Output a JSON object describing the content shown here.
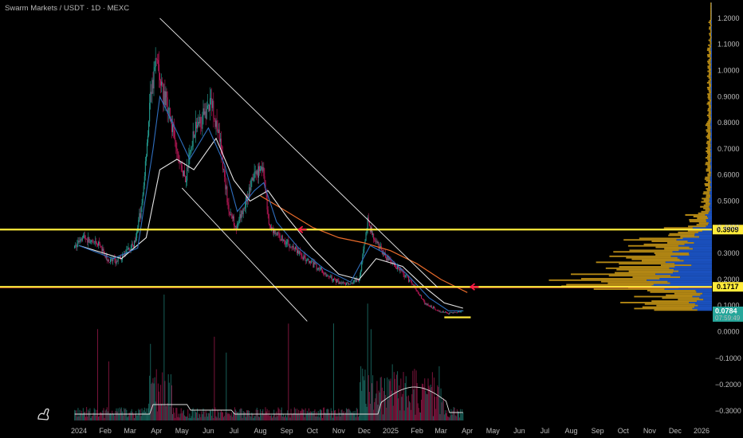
{
  "header": {
    "title": "Swarm Markets / USDT · 1D · MEXC"
  },
  "price_tag": {
    "value": "0.0784",
    "countdown": "07:59:49"
  },
  "colors": {
    "background": "#000000",
    "up_candle": "#26a69a",
    "down_candle": "#c2185b",
    "ema_fast": "#2f6fbf",
    "ema_mid": "#e5e5e5",
    "ma_slow": "#e86a2a",
    "level_line": "#ffeb3b",
    "level_red": "#e53935",
    "arrow": "#ff1744",
    "vp_blue": "#1e5bd6",
    "vp_gold": "#d4a017",
    "volume_line": "#e0e0e0"
  },
  "chart_data": {
    "type": "candlestick",
    "title": "Swarm Markets / USDT · 1D · MEXC",
    "price_axis": {
      "ticks": [
        "1.2000",
        "1.1000",
        "1.0000",
        "0.9000",
        "0.8000",
        "0.7000",
        "0.6000",
        "0.5000",
        "0.4000",
        "0.3000",
        "0.2000",
        "0.1000",
        "0.0000"
      ],
      "ylim": [
        0.0,
        1.25
      ]
    },
    "volume_axis": {
      "ticks": [
        "−0.1000",
        "−0.2000",
        "−0.3000"
      ]
    },
    "x_axis": {
      "ticks": [
        "2024",
        "Feb",
        "Mar",
        "Apr",
        "May",
        "Jun",
        "Jul",
        "Aug",
        "Sep",
        "Oct",
        "Nov",
        "Dec",
        "2025",
        "Feb",
        "Mar",
        "Apr",
        "May",
        "Jun",
        "Jul",
        "Aug",
        "Sep",
        "Oct",
        "Nov",
        "Dec",
        "2026"
      ],
      "start": "2024-01",
      "end": "2026-01"
    },
    "price_path": [
      [
        "2023-12-27",
        0.32
      ],
      [
        "2024-01-05",
        0.37
      ],
      [
        "2024-01-15",
        0.34
      ],
      [
        "2024-01-25",
        0.33
      ],
      [
        "2024-02-05",
        0.27
      ],
      [
        "2024-02-15",
        0.27
      ],
      [
        "2024-02-25",
        0.3
      ],
      [
        "2024-03-05",
        0.33
      ],
      [
        "2024-03-15",
        0.48
      ],
      [
        "2024-03-25",
        0.9
      ],
      [
        "2024-04-01",
        1.05
      ],
      [
        "2024-04-08",
        0.92
      ],
      [
        "2024-04-15",
        0.86
      ],
      [
        "2024-04-25",
        0.68
      ],
      [
        "2024-05-05",
        0.58
      ],
      [
        "2024-05-15",
        0.77
      ],
      [
        "2024-05-25",
        0.82
      ],
      [
        "2024-06-05",
        0.88
      ],
      [
        "2024-06-15",
        0.72
      ],
      [
        "2024-06-25",
        0.46
      ],
      [
        "2024-07-05",
        0.4
      ],
      [
        "2024-07-15",
        0.5
      ],
      [
        "2024-07-25",
        0.6
      ],
      [
        "2024-08-03",
        0.64
      ],
      [
        "2024-08-12",
        0.4
      ],
      [
        "2024-08-25",
        0.36
      ],
      [
        "2024-09-10",
        0.32
      ],
      [
        "2024-09-25",
        0.27
      ],
      [
        "2024-10-10",
        0.24
      ],
      [
        "2024-10-25",
        0.2
      ],
      [
        "2024-11-10",
        0.18
      ],
      [
        "2024-11-25",
        0.2
      ],
      [
        "2024-12-05",
        0.42
      ],
      [
        "2024-12-12",
        0.36
      ],
      [
        "2024-12-25",
        0.29
      ],
      [
        "2025-01-10",
        0.24
      ],
      [
        "2025-01-25",
        0.19
      ],
      [
        "2025-02-10",
        0.11
      ],
      [
        "2025-02-25",
        0.08
      ],
      [
        "2025-03-10",
        0.07
      ],
      [
        "2025-03-27",
        0.0784
      ]
    ],
    "indicators": {
      "ema_fast": [
        [
          "2024-01-01",
          0.33
        ],
        [
          "2024-02-10",
          0.28
        ],
        [
          "2024-03-10",
          0.32
        ],
        [
          "2024-03-28",
          0.7
        ],
        [
          "2024-04-05",
          0.9
        ],
        [
          "2024-04-20",
          0.8
        ],
        [
          "2024-05-10",
          0.66
        ],
        [
          "2024-06-01",
          0.78
        ],
        [
          "2024-06-20",
          0.64
        ],
        [
          "2024-07-05",
          0.46
        ],
        [
          "2024-07-25",
          0.54
        ],
        [
          "2024-08-05",
          0.57
        ],
        [
          "2024-08-20",
          0.42
        ],
        [
          "2024-09-15",
          0.32
        ],
        [
          "2024-10-15",
          0.24
        ],
        [
          "2024-11-15",
          0.19
        ],
        [
          "2024-12-08",
          0.33
        ],
        [
          "2024-12-25",
          0.3
        ],
        [
          "2025-01-20",
          0.22
        ],
        [
          "2025-02-15",
          0.13
        ],
        [
          "2025-03-10",
          0.08
        ],
        [
          "2025-03-27",
          0.08
        ]
      ],
      "ema_mid": [
        [
          "2024-01-01",
          0.33
        ],
        [
          "2024-02-20",
          0.28
        ],
        [
          "2024-03-20",
          0.36
        ],
        [
          "2024-04-05",
          0.62
        ],
        [
          "2024-04-25",
          0.66
        ],
        [
          "2024-05-15",
          0.62
        ],
        [
          "2024-06-10",
          0.74
        ],
        [
          "2024-07-01",
          0.58
        ],
        [
          "2024-07-20",
          0.5
        ],
        [
          "2024-08-10",
          0.54
        ],
        [
          "2024-09-01",
          0.44
        ],
        [
          "2024-10-01",
          0.32
        ],
        [
          "2024-11-01",
          0.22
        ],
        [
          "2024-11-25",
          0.2
        ],
        [
          "2024-12-15",
          0.28
        ],
        [
          "2025-01-15",
          0.25
        ],
        [
          "2025-02-10",
          0.17
        ],
        [
          "2025-03-05",
          0.11
        ],
        [
          "2025-03-27",
          0.09
        ]
      ],
      "ma_slow": [
        [
          "2024-08-01",
          0.52
        ],
        [
          "2024-09-01",
          0.46
        ],
        [
          "2024-10-01",
          0.4
        ],
        [
          "2024-11-01",
          0.36
        ],
        [
          "2024-12-01",
          0.34
        ],
        [
          "2025-01-01",
          0.31
        ],
        [
          "2025-02-01",
          0.26
        ],
        [
          "2025-03-01",
          0.2
        ],
        [
          "2025-04-01",
          0.15
        ]
      ]
    },
    "levels": [
      {
        "value": 0.3909,
        "label": "0.3909"
      },
      {
        "value": 0.1717,
        "label": "0.1717"
      }
    ],
    "trendlines": [
      {
        "from": [
          "2024-04-05",
          1.2
        ],
        "to": [
          "2025-02-25",
          0.17
        ]
      },
      {
        "from": [
          "2024-05-01",
          0.55
        ],
        "to": [
          "2024-09-25",
          0.04
        ]
      },
      {
        "from": [
          "2025-03-05",
          0.0
        ],
        "to": [
          "2025-04-05",
          0.0
        ]
      }
    ],
    "volume_profile": {
      "bins_price": [
        0.08,
        0.12,
        0.16,
        0.2,
        0.24,
        0.28,
        0.32,
        0.36,
        0.4,
        0.45,
        0.5,
        0.55,
        0.6,
        0.7,
        0.8,
        0.9,
        1.0,
        1.1,
        1.2
      ],
      "bins_value": [
        0.55,
        0.45,
        0.95,
        0.8,
        0.7,
        0.6,
        0.55,
        0.3,
        0.15,
        0.08,
        0.06,
        0.05,
        0.04,
        0.04,
        0.03,
        0.03,
        0.03,
        0.02,
        0.01
      ]
    }
  }
}
